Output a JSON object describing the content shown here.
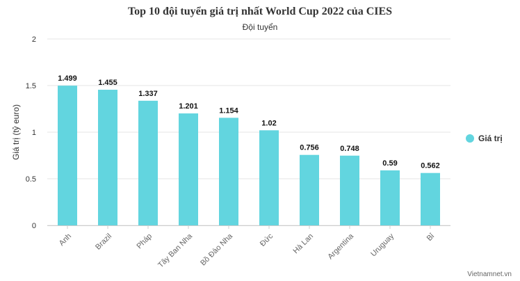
{
  "chart_data": {
    "type": "bar",
    "title": "Top 10 đội tuyển giá trị nhất World Cup 2022 của CIES",
    "subtitle": "Đội tuyển",
    "xlabel": "",
    "ylabel": "Giá trị (tỷ euro)",
    "ylim": [
      0,
      2
    ],
    "yticks": [
      "0",
      "0.5",
      "1",
      "1.5",
      "2"
    ],
    "categories": [
      "Anh",
      "Brazil",
      "Pháp",
      "Tây Ban Nha",
      "Bồ Đào Nha",
      "Đức",
      "Hà Lan",
      "Argentina",
      "Uruguay",
      "Bỉ"
    ],
    "series": [
      {
        "name": "Giá trị",
        "values": [
          1.499,
          1.455,
          1.337,
          1.201,
          1.154,
          1.02,
          0.756,
          0.748,
          0.59,
          0.562
        ],
        "labels": [
          "1.499",
          "1.455",
          "1.337",
          "1.201",
          "1.154",
          "1.02",
          "0.756",
          "0.748",
          "0.59",
          "0.562"
        ],
        "color": "#62d5df"
      }
    ],
    "grid": true,
    "legend": "right"
  },
  "credit": "Vietnamnet.vn",
  "colors": {
    "bar": "#62d5df",
    "grid": "#e6e6e6",
    "text": "#333333",
    "axis_label": "#666666"
  }
}
